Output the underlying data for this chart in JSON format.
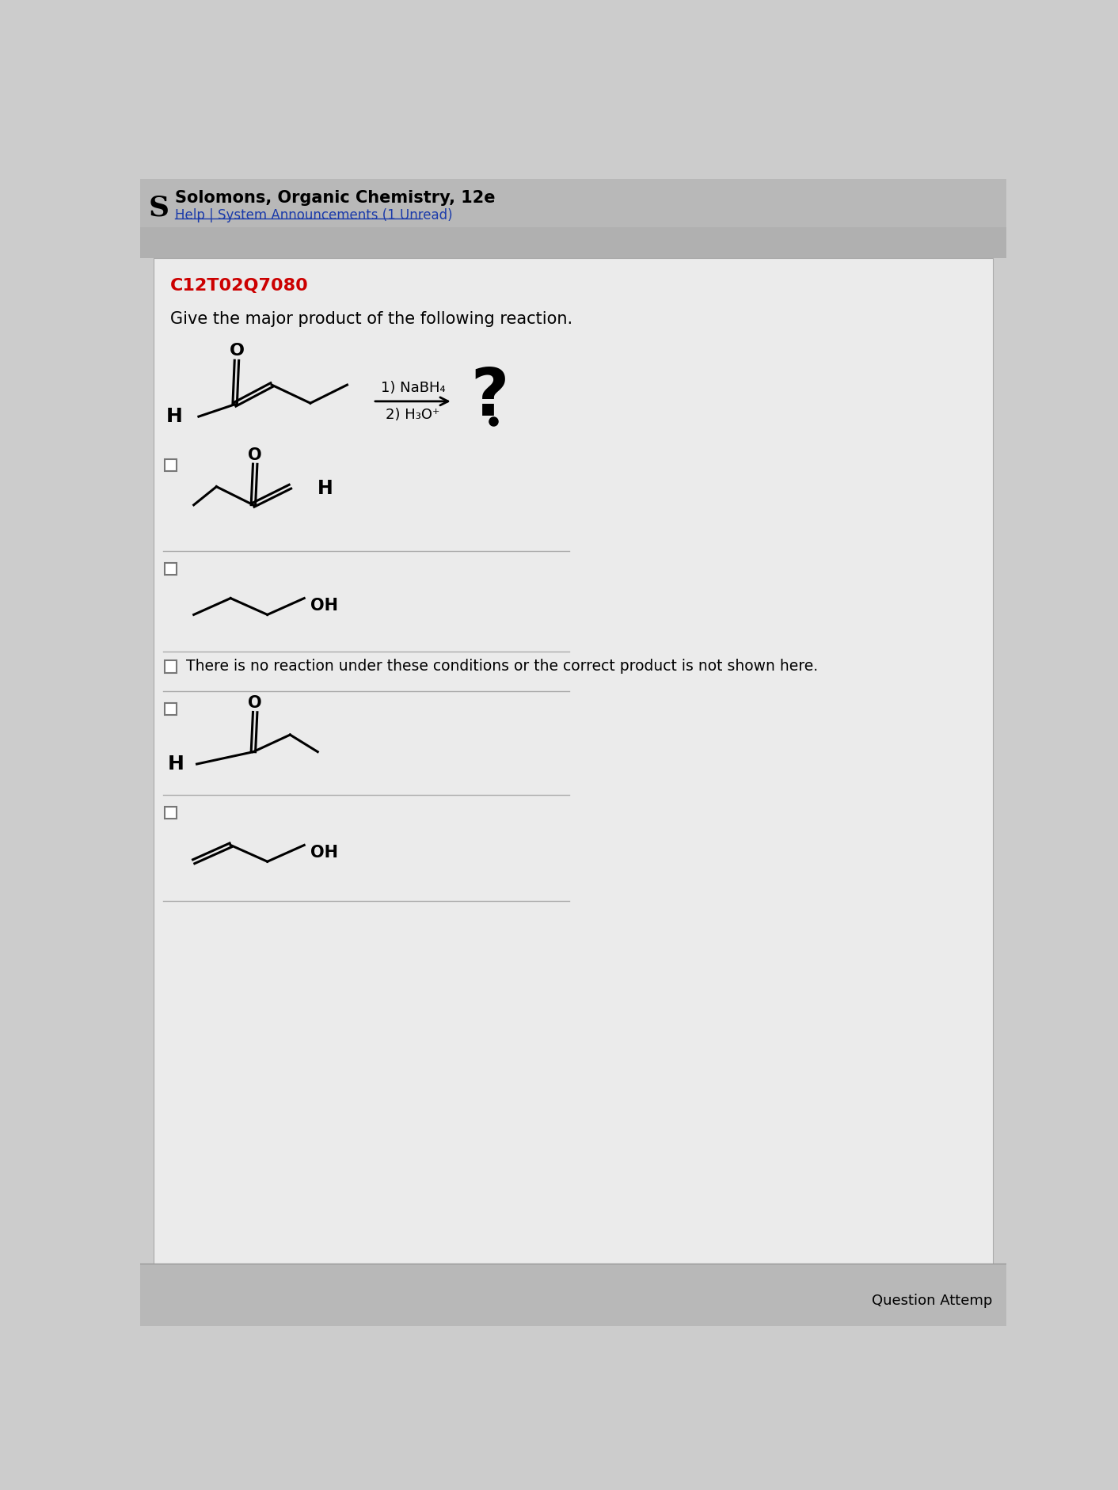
{
  "title": "C12T02Q7080",
  "title_color": "#cc0000",
  "header_text": "Solomons, Organic Chemistry, 12e",
  "header_subtext": "Help | System Announcements (1 Unread)",
  "question_text": "Give the major product of the following reaction.",
  "no_reaction_text": "There is no reaction under these conditions or the correct product is not shown here.",
  "question_attempt_text": "Question Attemp",
  "bg_color": "#cccccc",
  "header_bg": "#c0c0c0",
  "content_bg": "#ebebeb"
}
